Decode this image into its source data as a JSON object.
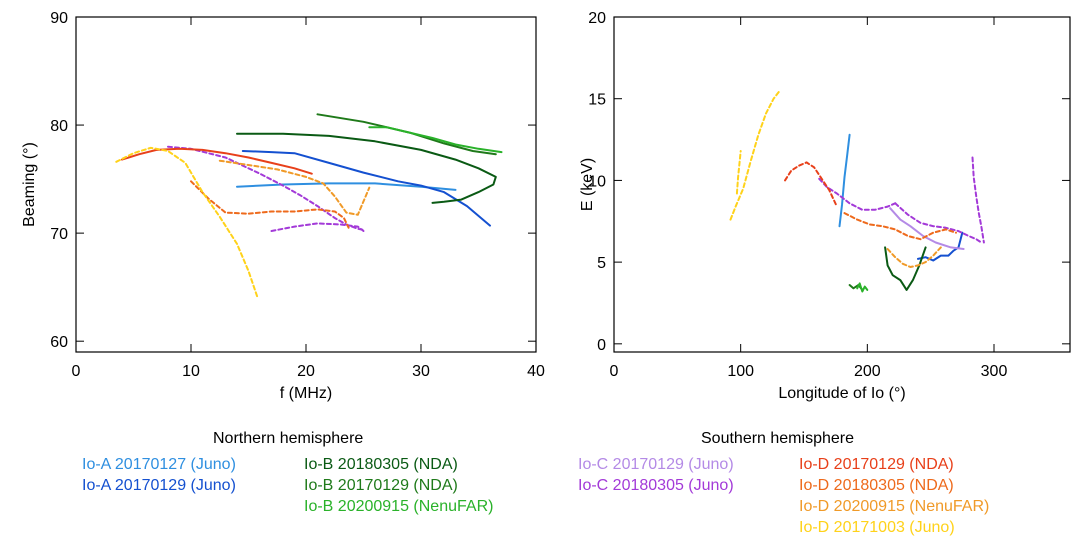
{
  "chart_data": [
    {
      "type": "line",
      "xlabel": "f (MHz)",
      "ylabel": "Beaming (°)",
      "xlim": [
        0,
        40
      ],
      "ylim": [
        59,
        90
      ],
      "xticks": [
        "0",
        "10",
        "20",
        "30",
        "40"
      ],
      "yticks": [
        "60",
        "70",
        "80",
        "90"
      ],
      "xtick_values": [
        0,
        10,
        20,
        30,
        40
      ],
      "ytick_values": [
        60,
        70,
        80,
        90
      ],
      "series": [
        {
          "legend_ref": "io-a-20170127-juno",
          "color": "#2f8fe0",
          "dashed": false,
          "x": [
            14,
            18,
            22,
            26,
            30,
            33
          ],
          "y": [
            74.3,
            74.5,
            74.6,
            74.6,
            74.3,
            74.0
          ]
        },
        {
          "legend_ref": "io-a-20170129-juno",
          "color": "#1450d0",
          "dashed": false,
          "x": [
            14.5,
            17,
            19,
            22,
            25,
            28,
            30,
            32,
            34,
            36
          ],
          "y": [
            77.6,
            77.5,
            77.4,
            76.5,
            75.6,
            74.8,
            74.4,
            73.8,
            72.5,
            70.7
          ]
        },
        {
          "legend_ref": "io-b-20180305-nda",
          "color": "#0a5a14",
          "dashed": false,
          "x": [
            14,
            18,
            22,
            26,
            30,
            33,
            35,
            36.5,
            36.3,
            35,
            33.5,
            32,
            31
          ],
          "y": [
            79.2,
            79.2,
            79.0,
            78.5,
            77.7,
            76.8,
            76.0,
            75.2,
            74.5,
            73.8,
            73.1,
            72.9,
            72.8
          ]
        },
        {
          "legend_ref": "io-b-20170129-nda",
          "color": "#1f7a1a",
          "dashed": false,
          "x": [
            21,
            25,
            29,
            32,
            34.5,
            36.5
          ],
          "y": [
            81.0,
            80.3,
            79.3,
            78.3,
            77.6,
            77.3
          ]
        },
        {
          "legend_ref": "io-b-20200915-nenufar",
          "color": "#2ab22a",
          "dashed": false,
          "x": [
            25.5,
            27,
            29,
            31,
            33,
            35,
            37
          ],
          "y": [
            79.8,
            79.8,
            79.3,
            78.8,
            78.2,
            77.8,
            77.5
          ]
        },
        {
          "legend_ref": "io-c-20180305-juno",
          "color": "#a33ad8",
          "dashed": true,
          "x": [
            8,
            10,
            13,
            16,
            18,
            19.5,
            21,
            22.5,
            23.5,
            24.5,
            25
          ],
          "y": [
            78.0,
            77.8,
            77.0,
            75.5,
            74.4,
            73.5,
            72.5,
            71.4,
            70.8,
            70.4,
            70.3
          ]
        },
        {
          "legend_ref": "io-c-20180305-juno",
          "color": "#a33ad8",
          "dashed": true,
          "x": [
            17,
            19,
            21,
            23,
            24.5,
            25
          ],
          "y": [
            70.2,
            70.6,
            70.9,
            70.8,
            70.6,
            70.2
          ]
        },
        {
          "legend_ref": "io-d-20170129-nda",
          "color": "#e8401a",
          "dashed": false,
          "x": [
            4,
            5.5,
            7,
            9,
            11,
            13,
            15,
            17,
            19,
            20.5
          ],
          "y": [
            76.8,
            77.3,
            77.7,
            77.8,
            77.7,
            77.4,
            77.0,
            76.5,
            76.0,
            75.5
          ]
        },
        {
          "legend_ref": "io-d-20180305-nda",
          "color": "#ee6a1c",
          "dashed": true,
          "x": [
            10,
            11.5,
            13,
            15,
            17,
            19,
            21,
            22.5,
            23.3,
            23.7
          ],
          "y": [
            74.8,
            73.2,
            71.9,
            71.8,
            72.0,
            72.0,
            72.2,
            72.0,
            71.4,
            70.5
          ]
        },
        {
          "legend_ref": "io-d-20200915-nenufar",
          "color": "#f09a28",
          "dashed": true,
          "x": [
            12.5,
            15,
            17.5,
            20,
            21.5,
            22.5,
            23.5,
            24.5,
            25.5
          ],
          "y": [
            76.7,
            76.3,
            75.9,
            75.2,
            74.6,
            73.4,
            71.9,
            71.7,
            74.2
          ]
        },
        {
          "legend_ref": "io-d-20171003-juno",
          "color": "#ffd21a",
          "dashed": true,
          "x": [
            3.5,
            5,
            6.5,
            8,
            9.5,
            11,
            12.5,
            14,
            15,
            15.8
          ],
          "y": [
            76.6,
            77.4,
            77.9,
            77.6,
            76.5,
            73.8,
            71.5,
            69.0,
            66.5,
            64.0
          ]
        }
      ]
    },
    {
      "type": "line",
      "xlabel": "Longitude of Io (°)",
      "ylabel": "E (keV)",
      "xlim": [
        0,
        360
      ],
      "ylim": [
        -0.5,
        20
      ],
      "xticks": [
        "0",
        "100",
        "200",
        "300"
      ],
      "yticks": [
        "0",
        "5",
        "10",
        "15",
        "20"
      ],
      "xtick_values": [
        0,
        100,
        200,
        300
      ],
      "ytick_values": [
        0,
        5,
        10,
        15,
        20
      ],
      "series": [
        {
          "legend_ref": "io-a-20170127-juno",
          "color": "#2f8fe0",
          "dashed": false,
          "x": [
            178,
            180,
            182,
            184,
            186
          ],
          "y": [
            7.2,
            8.5,
            10.2,
            11.5,
            12.8
          ]
        },
        {
          "legend_ref": "io-a-20170129-juno",
          "color": "#1450d0",
          "dashed": false,
          "x": [
            240,
            246,
            252,
            258,
            264,
            268,
            272,
            275
          ],
          "y": [
            5.2,
            5.3,
            5.1,
            5.4,
            5.4,
            5.7,
            5.9,
            6.8
          ]
        },
        {
          "legend_ref": "io-b-20180305-nda",
          "color": "#0a5a14",
          "dashed": false,
          "x": [
            214,
            216,
            220,
            226,
            231,
            236,
            241,
            246
          ],
          "y": [
            5.9,
            4.8,
            4.2,
            3.9,
            3.3,
            3.9,
            4.8,
            5.9
          ]
        },
        {
          "legend_ref": "io-b-20170129-nda",
          "color": "#1f7a1a",
          "dashed": false,
          "x": [
            186,
            189,
            193,
            196
          ],
          "y": [
            3.6,
            3.4,
            3.6,
            3.3
          ]
        },
        {
          "legend_ref": "io-b-20200915-nenufar",
          "color": "#2ab22a",
          "dashed": false,
          "x": [
            192,
            194,
            196,
            198,
            200
          ],
          "y": [
            3.4,
            3.7,
            3.2,
            3.5,
            3.3
          ]
        },
        {
          "legend_ref": "io-c-20170129-juno",
          "color": "#b48ae6",
          "dashed": false,
          "x": [
            218,
            226,
            234,
            244,
            254,
            266,
            276
          ],
          "y": [
            8.3,
            7.6,
            7.2,
            6.6,
            6.2,
            5.9,
            5.8
          ]
        },
        {
          "legend_ref": "io-c-20180305-juno",
          "color": "#a33ad8",
          "dashed": true,
          "x": [
            162,
            168,
            176,
            186,
            196,
            206,
            216,
            222
          ],
          "y": [
            10.1,
            9.6,
            9.2,
            8.6,
            8.2,
            8.2,
            8.4,
            8.6
          ]
        },
        {
          "legend_ref": "io-c-20180305-juno",
          "color": "#a33ad8",
          "dashed": true,
          "x": [
            222,
            232,
            242,
            252,
            262,
            272,
            280,
            286,
            290
          ],
          "y": [
            8.6,
            7.9,
            7.4,
            7.2,
            7.1,
            6.9,
            6.6,
            6.4,
            6.2
          ]
        },
        {
          "legend_ref": "io-c-20180305-juno",
          "color": "#a33ad8",
          "dashed": true,
          "x": [
            283,
            284,
            286,
            288,
            290,
            292
          ],
          "y": [
            11.4,
            10.2,
            9.0,
            8.0,
            7.2,
            6.2
          ]
        },
        {
          "legend_ref": "io-d-20170129-nda",
          "color": "#e8401a",
          "dashed": true,
          "x": [
            135,
            140,
            146,
            152,
            158,
            164,
            170,
            176
          ],
          "y": [
            10.0,
            10.6,
            10.9,
            11.1,
            10.8,
            10.1,
            9.4,
            8.4
          ]
        },
        {
          "legend_ref": "io-d-20180305-nda",
          "color": "#ee6a1c",
          "dashed": true,
          "x": [
            182,
            192,
            202,
            212,
            222,
            232,
            242,
            252,
            262,
            270
          ],
          "y": [
            8.0,
            7.6,
            7.3,
            7.2,
            7.0,
            6.6,
            6.4,
            6.8,
            7.0,
            6.8
          ]
        },
        {
          "legend_ref": "io-d-20200915-nenufar",
          "color": "#f09a28",
          "dashed": true,
          "x": [
            216,
            222,
            228,
            234,
            240,
            246,
            252,
            258
          ],
          "y": [
            5.8,
            5.3,
            4.9,
            4.7,
            4.8,
            5.0,
            5.4,
            5.9
          ]
        },
        {
          "legend_ref": "io-d-20171003-juno",
          "color": "#ffd21a",
          "dashed": true,
          "x": [
            92,
            96,
            102,
            108,
            114,
            120,
            126,
            131
          ],
          "y": [
            7.6,
            8.4,
            9.5,
            11.2,
            12.8,
            14.1,
            15.0,
            15.5
          ]
        },
        {
          "legend_ref": "io-d-20171003-juno",
          "color": "#ffd21a",
          "dashed": true,
          "x": [
            97,
            98,
            99,
            100
          ],
          "y": [
            9.2,
            10.2,
            11.0,
            11.8
          ]
        }
      ]
    }
  ],
  "legend": {
    "north": {
      "title": "Northern hemisphere",
      "col1": [
        {
          "id": "io-a-20170127-juno",
          "label": "Io-A 20170127 (Juno)",
          "color": "#2f8fe0"
        },
        {
          "id": "io-a-20170129-juno",
          "label": "Io-A 20170129 (Juno)",
          "color": "#1450d0"
        }
      ],
      "col2": [
        {
          "id": "io-b-20180305-nda",
          "label": "Io-B 20180305 (NDA)",
          "color": "#0a5a14"
        },
        {
          "id": "io-b-20170129-nda",
          "label": "Io-B 20170129 (NDA)",
          "color": "#1f7a1a"
        },
        {
          "id": "io-b-20200915-nenufar",
          "label": "Io-B 20200915 (NenuFAR)",
          "color": "#2ab22a"
        }
      ]
    },
    "south": {
      "title": "Southern hemisphere",
      "col1": [
        {
          "id": "io-c-20170129-juno",
          "label": "Io-C 20170129 (Juno)",
          "color": "#b48ae6"
        },
        {
          "id": "io-c-20180305-juno",
          "label": "Io-C 20180305 (Juno)",
          "color": "#a33ad8"
        }
      ],
      "col2": [
        {
          "id": "io-d-20170129-nda",
          "label": "Io-D 20170129 (NDA)",
          "color": "#e8401a"
        },
        {
          "id": "io-d-20180305-nda",
          "label": "Io-D 20180305 (NDA)",
          "color": "#ee6a1c"
        },
        {
          "id": "io-d-20200915-nenufar",
          "label": "Io-D 20200915 (NenuFAR)",
          "color": "#f09a28"
        },
        {
          "id": "io-d-20171003-juno",
          "label": "Io-D 20171003 (Juno)",
          "color": "#ffd21a"
        }
      ]
    }
  }
}
